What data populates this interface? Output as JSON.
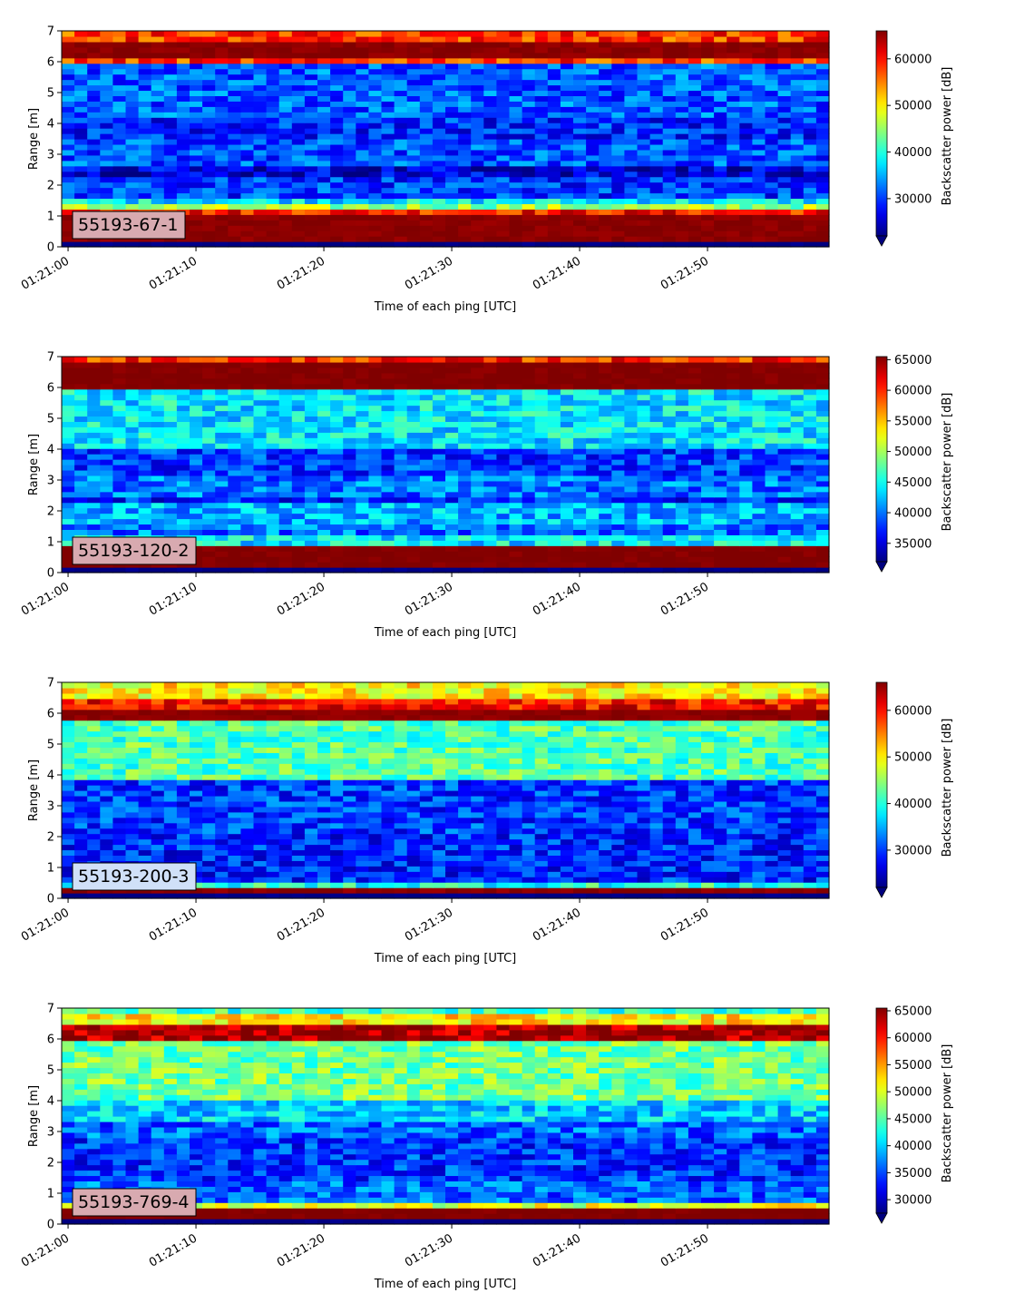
{
  "chart_data": [
    {
      "type": "heatmap",
      "label": "55193-67-1",
      "label_box_color": "#d8aab0",
      "xlabel": "Time of each ping [UTC]",
      "ylabel": "Range [m]",
      "colorbar_label": "Backscatter power [dB]",
      "colormap": "jet",
      "x_ticks": [
        "01:21:00",
        "01:21:10",
        "01:21:20",
        "01:21:30",
        "01:21:40",
        "01:21:50"
      ],
      "x_range_seconds": [
        -0.5,
        59.5
      ],
      "y_ticks": [
        0,
        1,
        2,
        3,
        4,
        5,
        6,
        7
      ],
      "ylim": [
        0,
        7
      ],
      "colorbar_ticks": [
        30000,
        40000,
        50000,
        60000
      ],
      "clim": [
        22000,
        66000
      ],
      "colorbar_extend": "min",
      "bands": [
        {
          "from": 0.0,
          "to": 0.2,
          "value": 22000
        },
        {
          "from": 0.2,
          "to": 1.05,
          "value": 65500
        },
        {
          "from": 1.05,
          "to": 1.2,
          "value": 60000
        },
        {
          "from": 1.2,
          "to": 1.35,
          "value": 45000
        },
        {
          "from": 1.35,
          "to": 1.6,
          "value": 38000
        },
        {
          "from": 1.6,
          "to": 2.2,
          "value": 30000
        },
        {
          "from": 2.2,
          "to": 2.6,
          "value": 26000
        },
        {
          "from": 2.6,
          "to": 3.5,
          "value": 31000
        },
        {
          "from": 3.5,
          "to": 4.2,
          "value": 29000
        },
        {
          "from": 4.2,
          "to": 5.9,
          "value": 31500
        },
        {
          "from": 5.9,
          "to": 6.05,
          "value": 58000
        },
        {
          "from": 6.05,
          "to": 6.7,
          "value": 65500
        },
        {
          "from": 6.7,
          "to": 7.0,
          "value": 58000
        }
      ]
    },
    {
      "type": "heatmap",
      "label": "55193-120-2",
      "label_box_color": "#d8aab0",
      "xlabel": "Time of each ping [UTC]",
      "ylabel": "Range [m]",
      "colorbar_label": "Backscatter power [dB]",
      "colormap": "jet",
      "x_ticks": [
        "01:21:00",
        "01:21:10",
        "01:21:20",
        "01:21:30",
        "01:21:40",
        "01:21:50"
      ],
      "x_range_seconds": [
        -0.5,
        59.5
      ],
      "y_ticks": [
        0,
        1,
        2,
        3,
        4,
        5,
        6,
        7
      ],
      "ylim": [
        0,
        7
      ],
      "colorbar_ticks": [
        35000,
        40000,
        45000,
        50000,
        55000,
        60000,
        65000
      ],
      "clim": [
        32000,
        65500
      ],
      "colorbar_extend": "min",
      "bands": [
        {
          "from": 0.0,
          "to": 0.2,
          "value": 32000
        },
        {
          "from": 0.2,
          "to": 0.8,
          "value": 65500
        },
        {
          "from": 0.8,
          "to": 0.95,
          "value": 50000
        },
        {
          "from": 0.95,
          "to": 1.3,
          "value": 44000
        },
        {
          "from": 1.3,
          "to": 1.6,
          "value": 40000
        },
        {
          "from": 1.6,
          "to": 2.3,
          "value": 42000
        },
        {
          "from": 2.3,
          "to": 2.5,
          "value": 37000
        },
        {
          "from": 2.5,
          "to": 3.2,
          "value": 40000
        },
        {
          "from": 3.2,
          "to": 4.0,
          "value": 38000
        },
        {
          "from": 4.0,
          "to": 5.9,
          "value": 44000
        },
        {
          "from": 5.9,
          "to": 6.0,
          "value": 60000
        },
        {
          "from": 6.0,
          "to": 6.75,
          "value": 65500
        },
        {
          "from": 6.75,
          "to": 7.0,
          "value": 60000
        }
      ]
    },
    {
      "type": "heatmap",
      "label": "55193-200-3",
      "label_box_color": "#d0e0f8",
      "xlabel": "Time of each ping [UTC]",
      "ylabel": "Range [m]",
      "colorbar_label": "Backscatter power [dB]",
      "colormap": "jet",
      "x_ticks": [
        "01:21:00",
        "01:21:10",
        "01:21:20",
        "01:21:30",
        "01:21:40",
        "01:21:50"
      ],
      "x_range_seconds": [
        -0.5,
        59.5
      ],
      "y_ticks": [
        0,
        1,
        2,
        3,
        4,
        5,
        6,
        7
      ],
      "ylim": [
        0,
        7
      ],
      "colorbar_ticks": [
        30000,
        40000,
        50000,
        60000
      ],
      "clim": [
        22000,
        66000
      ],
      "colorbar_extend": "min",
      "bands": [
        {
          "from": 0.0,
          "to": 0.1,
          "value": 22000
        },
        {
          "from": 0.1,
          "to": 0.3,
          "value": 65500
        },
        {
          "from": 0.3,
          "to": 0.6,
          "value": 40000
        },
        {
          "from": 0.6,
          "to": 2.1,
          "value": 29000
        },
        {
          "from": 2.1,
          "to": 3.8,
          "value": 30000
        },
        {
          "from": 3.8,
          "to": 5.7,
          "value": 42000
        },
        {
          "from": 5.7,
          "to": 6.1,
          "value": 65500
        },
        {
          "from": 6.1,
          "to": 6.5,
          "value": 60000
        },
        {
          "from": 6.5,
          "to": 7.0,
          "value": 50000
        }
      ]
    },
    {
      "type": "heatmap",
      "label": "55193-769-4",
      "label_box_color": "#d8aab0",
      "xlabel": "Time of each ping [UTC]",
      "ylabel": "Range [m]",
      "colorbar_label": "Backscatter power [dB]",
      "colormap": "jet",
      "x_ticks": [
        "01:21:00",
        "01:21:10",
        "01:21:20",
        "01:21:30",
        "01:21:40",
        "01:21:50"
      ],
      "x_range_seconds": [
        -0.5,
        59.5
      ],
      "y_ticks": [
        0,
        1,
        2,
        3,
        4,
        5,
        6,
        7
      ],
      "ylim": [
        0,
        7
      ],
      "colorbar_ticks": [
        30000,
        35000,
        40000,
        45000,
        50000,
        55000,
        60000,
        65000
      ],
      "clim": [
        27500,
        65500
      ],
      "colorbar_extend": "min",
      "bands": [
        {
          "from": 0.0,
          "to": 0.2,
          "value": 27500
        },
        {
          "from": 0.2,
          "to": 0.6,
          "value": 65500
        },
        {
          "from": 0.6,
          "to": 0.7,
          "value": 50000
        },
        {
          "from": 0.7,
          "to": 1.4,
          "value": 36000
        },
        {
          "from": 1.4,
          "to": 2.8,
          "value": 34000
        },
        {
          "from": 2.8,
          "to": 3.3,
          "value": 36000
        },
        {
          "from": 3.3,
          "to": 4.0,
          "value": 40000
        },
        {
          "from": 4.0,
          "to": 6.0,
          "value": 46000
        },
        {
          "from": 6.0,
          "to": 6.5,
          "value": 64000
        },
        {
          "from": 6.5,
          "to": 6.85,
          "value": 52000
        },
        {
          "from": 6.85,
          "to": 7.0,
          "value": 44000
        }
      ]
    }
  ]
}
